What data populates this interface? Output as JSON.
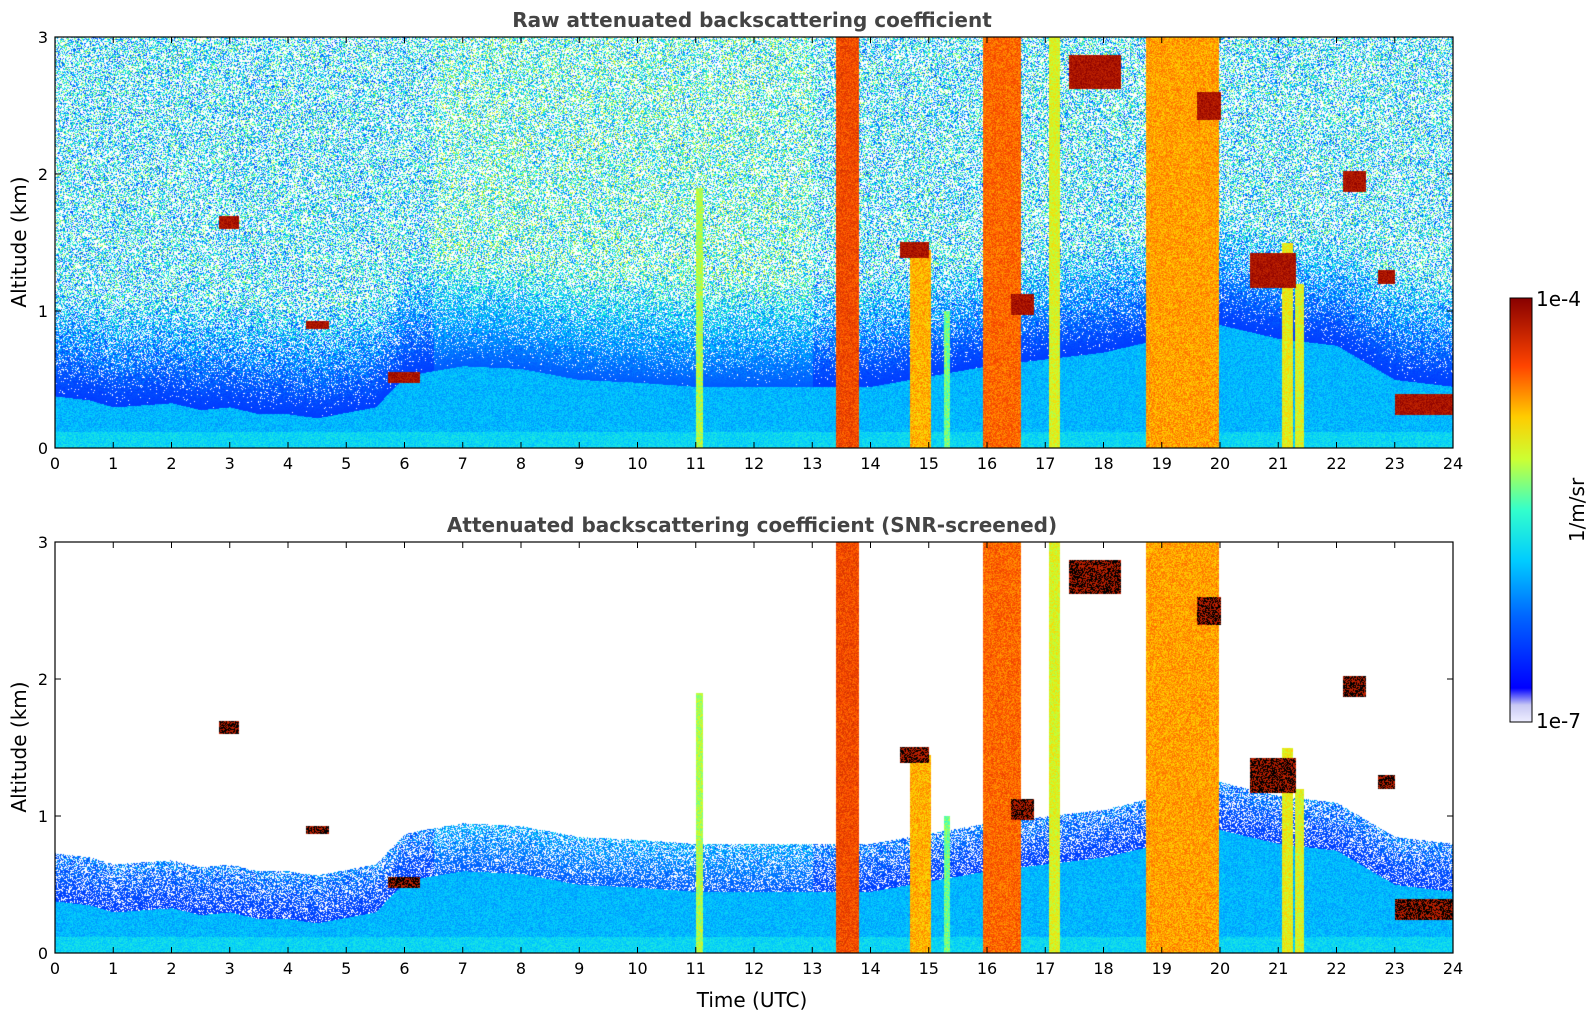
{
  "chart_data": [
    {
      "type": "heatmap",
      "title": "Raw attenuated backscattering coefficient",
      "xlabel": "",
      "ylabel": "Altitude (km)",
      "xlim": [
        0,
        24
      ],
      "ylim": [
        0,
        3
      ],
      "xticks": [
        "0",
        "1",
        "2",
        "3",
        "4",
        "5",
        "6",
        "7",
        "8",
        "9",
        "10",
        "11",
        "12",
        "13",
        "14",
        "15",
        "16",
        "17",
        "18",
        "19",
        "20",
        "21",
        "22",
        "23",
        "24"
      ],
      "yticks": [
        "0",
        "1",
        "2",
        "3"
      ],
      "screened": false
    },
    {
      "type": "heatmap",
      "title": "Attenuated backscattering coefficient (SNR-screened)",
      "xlabel": "Time (UTC)",
      "ylabel": "Altitude (km)",
      "xlim": [
        0,
        24
      ],
      "ylim": [
        0,
        3
      ],
      "xticks": [
        "0",
        "1",
        "2",
        "3",
        "4",
        "5",
        "6",
        "7",
        "8",
        "9",
        "10",
        "11",
        "12",
        "13",
        "14",
        "15",
        "16",
        "17",
        "18",
        "19",
        "20",
        "21",
        "22",
        "23",
        "24"
      ],
      "yticks": [
        "0",
        "1",
        "2",
        "3"
      ],
      "screened": true
    }
  ],
  "colorbar": {
    "label": "1/m/sr",
    "max_label": "1e-4",
    "min_label": "1e-7",
    "range": [
      1e-07,
      0.0001
    ],
    "scale": "log",
    "colormap": "jet"
  },
  "features": {
    "boundary_layer": [
      [
        0,
        0.38
      ],
      [
        0.6,
        0.35
      ],
      [
        1,
        0.3
      ],
      [
        2,
        0.33
      ],
      [
        2.5,
        0.28
      ],
      [
        3,
        0.3
      ],
      [
        3.5,
        0.25
      ],
      [
        4,
        0.25
      ],
      [
        4.5,
        0.22
      ],
      [
        5.5,
        0.3
      ],
      [
        6,
        0.52
      ],
      [
        6.3,
        0.55
      ],
      [
        7,
        0.6
      ],
      [
        8,
        0.58
      ],
      [
        9,
        0.5
      ],
      [
        10,
        0.48
      ],
      [
        11,
        0.45
      ],
      [
        12,
        0.45
      ],
      [
        13,
        0.45
      ],
      [
        14,
        0.45
      ],
      [
        16,
        0.6
      ],
      [
        17,
        0.65
      ],
      [
        18,
        0.7
      ],
      [
        19,
        0.8
      ],
      [
        20,
        0.9
      ],
      [
        21,
        0.8
      ],
      [
        22,
        0.75
      ],
      [
        23,
        0.5
      ],
      [
        24,
        0.45
      ]
    ],
    "rain_columns": [
      {
        "t": 13.6,
        "w": 0.4,
        "top": 3.0,
        "strength": 0.82
      },
      {
        "t": 14.85,
        "w": 0.35,
        "top": 1.45,
        "strength": 0.7
      },
      {
        "t": 16.25,
        "w": 0.65,
        "top": 3.0,
        "strength": 0.78
      },
      {
        "t": 17.15,
        "w": 0.2,
        "top": 3.0,
        "strength": 0.6
      },
      {
        "t": 19.35,
        "w": 1.25,
        "top": 3.0,
        "strength": 0.72
      },
      {
        "t": 21.15,
        "w": 0.2,
        "top": 1.5,
        "strength": 0.62
      },
      {
        "t": 21.35,
        "w": 0.15,
        "top": 1.2,
        "strength": 0.6
      },
      {
        "t": 11.05,
        "w": 0.12,
        "top": 1.9,
        "strength": 0.55
      },
      {
        "t": 15.3,
        "w": 0.1,
        "top": 1.0,
        "strength": 0.5
      }
    ],
    "cloud_layers": [
      {
        "t0": 2.8,
        "t1": 3.15,
        "z": 1.65,
        "dz": 0.1
      },
      {
        "t0": 4.3,
        "t1": 4.7,
        "z": 0.9,
        "dz": 0.06
      },
      {
        "t0": 14.5,
        "t1": 15.0,
        "z": 1.45,
        "dz": 0.12
      },
      {
        "t0": 16.4,
        "t1": 16.8,
        "z": 1.05,
        "dz": 0.15
      },
      {
        "t0": 17.4,
        "t1": 18.3,
        "z": 2.75,
        "dz": 0.25
      },
      {
        "t0": 19.6,
        "t1": 20.0,
        "z": 2.5,
        "dz": 0.2
      },
      {
        "t0": 20.5,
        "t1": 21.3,
        "z": 1.3,
        "dz": 0.25
      },
      {
        "t0": 22.1,
        "t1": 22.5,
        "z": 1.95,
        "dz": 0.15
      },
      {
        "t0": 22.7,
        "t1": 23.0,
        "z": 1.25,
        "dz": 0.1
      },
      {
        "t0": 23.0,
        "t1": 24.0,
        "z": 0.32,
        "dz": 0.15
      },
      {
        "t0": 5.7,
        "t1": 6.25,
        "z": 0.52,
        "dz": 0.08
      }
    ]
  }
}
